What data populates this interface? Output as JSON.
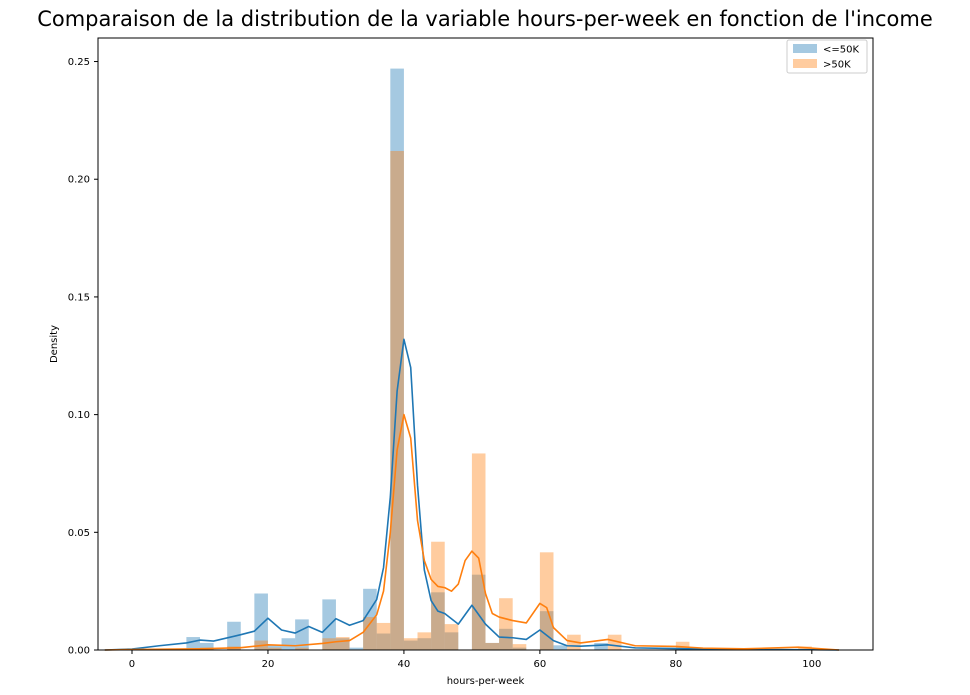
{
  "chart_data": {
    "type": "bar",
    "title": "Comparaison de la distribution de la variable hours-per-week en fonction de l'income",
    "xlabel": "hours-per-week",
    "ylabel": "Density",
    "xlim": [
      -5,
      109
    ],
    "ylim": [
      0,
      0.26
    ],
    "xticks": [
      "0",
      "20",
      "40",
      "60",
      "80",
      "100"
    ],
    "xtick_values": [
      0,
      20,
      40,
      60,
      80,
      100
    ],
    "yticks": [
      "0.00",
      "0.05",
      "0.10",
      "0.15",
      "0.20",
      "0.25"
    ],
    "ytick_values": [
      0,
      0.05,
      0.1,
      0.15,
      0.2,
      0.25
    ],
    "grid": false,
    "legend_position": "top-right",
    "bin_width": 2,
    "series": [
      {
        "name": "<=50K",
        "color": "#1f77b4",
        "histogram": [
          {
            "x": 8,
            "density": 0.0055
          },
          {
            "x": 10,
            "density": 0.003
          },
          {
            "x": 14,
            "density": 0.012
          },
          {
            "x": 18,
            "density": 0.024
          },
          {
            "x": 20,
            "density": 0.002
          },
          {
            "x": 22,
            "density": 0.005
          },
          {
            "x": 24,
            "density": 0.013
          },
          {
            "x": 28,
            "density": 0.0215
          },
          {
            "x": 30,
            "density": 0.005
          },
          {
            "x": 32,
            "density": 0.001
          },
          {
            "x": 34,
            "density": 0.026
          },
          {
            "x": 36,
            "density": 0.007
          },
          {
            "x": 38,
            "density": 0.247
          },
          {
            "x": 40,
            "density": 0.004
          },
          {
            "x": 42,
            "density": 0.005
          },
          {
            "x": 44,
            "density": 0.0245
          },
          {
            "x": 46,
            "density": 0.0075
          },
          {
            "x": 50,
            "density": 0.032
          },
          {
            "x": 52,
            "density": 0.003
          },
          {
            "x": 54,
            "density": 0.009
          },
          {
            "x": 56,
            "density": 0.001
          },
          {
            "x": 60,
            "density": 0.0165
          },
          {
            "x": 62,
            "density": 0.002
          },
          {
            "x": 68,
            "density": 0.003
          }
        ],
        "kde": [
          [
            -4,
            0
          ],
          [
            0,
            0.0004
          ],
          [
            4,
            0.0018
          ],
          [
            8,
            0.003
          ],
          [
            10,
            0.0042
          ],
          [
            12,
            0.0038
          ],
          [
            16,
            0.0065
          ],
          [
            18,
            0.008
          ],
          [
            20,
            0.0135
          ],
          [
            22,
            0.0085
          ],
          [
            24,
            0.0072
          ],
          [
            26,
            0.01
          ],
          [
            28,
            0.0075
          ],
          [
            30,
            0.0133
          ],
          [
            32,
            0.0105
          ],
          [
            34,
            0.0125
          ],
          [
            36,
            0.0215
          ],
          [
            37,
            0.035
          ],
          [
            38,
            0.065
          ],
          [
            39,
            0.11
          ],
          [
            40,
            0.132
          ],
          [
            41,
            0.12
          ],
          [
            42,
            0.07
          ],
          [
            43,
            0.034
          ],
          [
            44,
            0.021
          ],
          [
            45,
            0.0165
          ],
          [
            46,
            0.0155
          ],
          [
            48,
            0.011
          ],
          [
            50,
            0.019
          ],
          [
            52,
            0.011
          ],
          [
            54,
            0.0055
          ],
          [
            56,
            0.0052
          ],
          [
            58,
            0.0045
          ],
          [
            60,
            0.0085
          ],
          [
            62,
            0.004
          ],
          [
            64,
            0.0018
          ],
          [
            66,
            0.0016
          ],
          [
            70,
            0.0022
          ],
          [
            74,
            0.0009
          ],
          [
            80,
            0.0006
          ],
          [
            90,
            0.0002
          ],
          [
            100,
            0.0001
          ],
          [
            104,
            0
          ]
        ]
      },
      {
        "name": ">50K",
        "color": "#ff7f0e",
        "histogram": [
          {
            "x": 10,
            "density": 0.001
          },
          {
            "x": 14,
            "density": 0.0015
          },
          {
            "x": 18,
            "density": 0.004
          },
          {
            "x": 20,
            "density": 0.001
          },
          {
            "x": 24,
            "density": 0.001
          },
          {
            "x": 28,
            "density": 0.005
          },
          {
            "x": 30,
            "density": 0.0055
          },
          {
            "x": 34,
            "density": 0.014
          },
          {
            "x": 36,
            "density": 0.0115
          },
          {
            "x": 38,
            "density": 0.212
          },
          {
            "x": 40,
            "density": 0.005
          },
          {
            "x": 42,
            "density": 0.0075
          },
          {
            "x": 44,
            "density": 0.046
          },
          {
            "x": 46,
            "density": 0.011
          },
          {
            "x": 50,
            "density": 0.0835
          },
          {
            "x": 52,
            "density": 0.003
          },
          {
            "x": 54,
            "density": 0.022
          },
          {
            "x": 56,
            "density": 0.0025
          },
          {
            "x": 60,
            "density": 0.0415
          },
          {
            "x": 64,
            "density": 0.0065
          },
          {
            "x": 70,
            "density": 0.0065
          },
          {
            "x": 80,
            "density": 0.0035
          },
          {
            "x": 98,
            "density": 0.0015
          }
        ],
        "kde": [
          [
            -4,
            0
          ],
          [
            0,
            0.0002
          ],
          [
            10,
            0.0005
          ],
          [
            16,
            0.001
          ],
          [
            20,
            0.0022
          ],
          [
            24,
            0.0018
          ],
          [
            28,
            0.0028
          ],
          [
            30,
            0.0035
          ],
          [
            32,
            0.004
          ],
          [
            34,
            0.0075
          ],
          [
            36,
            0.015
          ],
          [
            37,
            0.025
          ],
          [
            38,
            0.05
          ],
          [
            39,
            0.085
          ],
          [
            40,
            0.1
          ],
          [
            41,
            0.09
          ],
          [
            42,
            0.055
          ],
          [
            43,
            0.038
          ],
          [
            44,
            0.03
          ],
          [
            45,
            0.027
          ],
          [
            46,
            0.0265
          ],
          [
            47,
            0.025
          ],
          [
            48,
            0.028
          ],
          [
            49,
            0.038
          ],
          [
            50,
            0.042
          ],
          [
            51,
            0.039
          ],
          [
            52,
            0.024
          ],
          [
            53,
            0.0155
          ],
          [
            54,
            0.014
          ],
          [
            56,
            0.0125
          ],
          [
            58,
            0.0115
          ],
          [
            60,
            0.0198
          ],
          [
            61,
            0.018
          ],
          [
            62,
            0.0095
          ],
          [
            64,
            0.004
          ],
          [
            66,
            0.003
          ],
          [
            70,
            0.0045
          ],
          [
            74,
            0.0018
          ],
          [
            80,
            0.0015
          ],
          [
            84,
            0.0008
          ],
          [
            90,
            0.0005
          ],
          [
            98,
            0.0012
          ],
          [
            104,
            0
          ]
        ]
      }
    ]
  }
}
